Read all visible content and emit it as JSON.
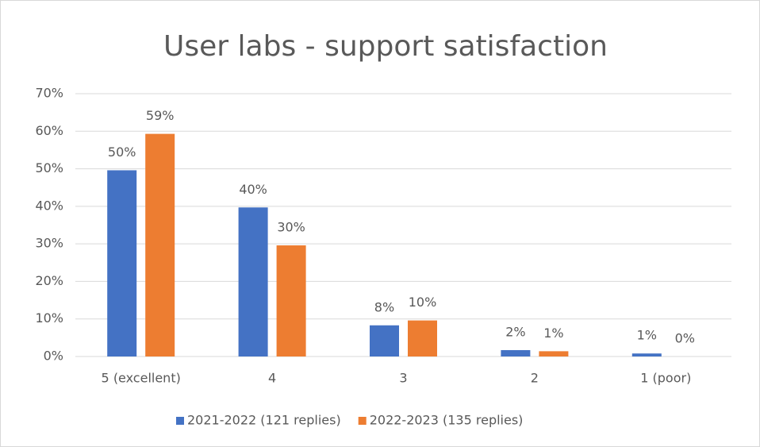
{
  "chart_data": {
    "type": "bar",
    "title": "User labs - support satisfaction",
    "categories": [
      "5 (excellent)",
      "4",
      "3",
      "2",
      "1 (poor)"
    ],
    "series": [
      {
        "name": "2021-2022 (121 replies)",
        "color": "#4472c4",
        "values": [
          49.6,
          39.7,
          8.3,
          1.7,
          0.8
        ],
        "value_labels": [
          "50%",
          "40%",
          "8%",
          "2%",
          "1%"
        ]
      },
      {
        "name": "2022-2023 (135 replies)",
        "color": "#ed7d31",
        "values": [
          59.3,
          29.6,
          9.6,
          1.4,
          0
        ],
        "value_labels": [
          "59%",
          "30%",
          "10%",
          "1%",
          "0%"
        ]
      }
    ],
    "ylim": [
      0,
      70
    ],
    "yticks": [
      {
        "value": 0,
        "label": "0%"
      },
      {
        "value": 10,
        "label": "10%"
      },
      {
        "value": 20,
        "label": "20%"
      },
      {
        "value": 30,
        "label": "30%"
      },
      {
        "value": 40,
        "label": "40%"
      },
      {
        "value": 50,
        "label": "50%"
      },
      {
        "value": 60,
        "label": "60%"
      },
      {
        "value": 70,
        "label": "70%"
      }
    ],
    "grid": true,
    "legend": "bottom"
  }
}
